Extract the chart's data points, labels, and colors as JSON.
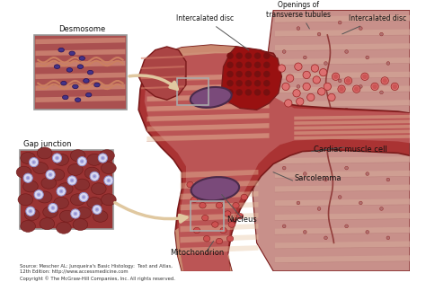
{
  "bg_color": "#ffffff",
  "labels": {
    "desmosome": "Desmosome",
    "gap_junction": "Gap junction",
    "intercalated_disc1": "Intercalated disc",
    "openings": "Openings of\ntransverse tubules",
    "intercalated_disc2": "Intercalated disc",
    "cardiac_muscle_cell": "Cardiac muscle cell",
    "sarcolemma": "Sarcolemma",
    "nucleus": "Nucleus",
    "mitochondrion": "Mitochondrion",
    "source": "Source: Mescher AL: Junqueira's Basic Histology:  Text and Atlas,\n12th Edition: http://www.accessmedicine.com\nCopyright © The McGraw-Hill Companies, Inc. All rights reserved."
  },
  "colors": {
    "muscle_dark": "#7A1A1A",
    "muscle_mid": "#AA3333",
    "muscle_light": "#CC7777",
    "muscle_pale": "#D4968A",
    "cell_outer": "#C86060",
    "nucleus_fill": "#7A4A7A",
    "nucleus_border": "#4A2A4A",
    "sarco_color": "#D4A890",
    "inset_border": "#999999",
    "arrow_color": "#E0C8A0",
    "text_color": "#111111",
    "source_color": "#333333",
    "intercalated": "#8B1010",
    "white": "#ffffff",
    "gap_dot_outer": "#C0C0E8",
    "gap_dot_inner": "#8888CC",
    "desmo_dot": "#553388",
    "stripe_light": "#E8C4A0",
    "stripe_mid": "#D4906A",
    "bg_right": "#C09090",
    "mito_fill": "#CC5555",
    "mito_edge": "#8B2020",
    "ref_box": "#AAAAAA"
  }
}
